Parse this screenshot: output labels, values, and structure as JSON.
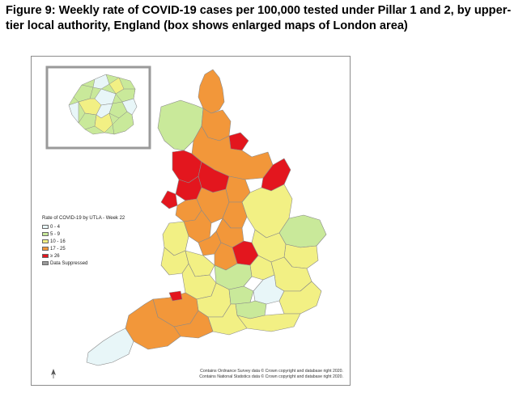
{
  "figure": {
    "title": "Figure 9: Weekly rate of COVID-19 cases per 100,000 tested under Pillar 1 and 2, by upper-tier local authority, England (box shows enlarged maps of London area)"
  },
  "legend": {
    "title": "Rate of COVID-19 by UTLA - Week 22",
    "items": [
      {
        "label": "0 - 4",
        "color": "#e8f6f8"
      },
      {
        "label": "5 - 9",
        "color": "#c9e99a"
      },
      {
        "label": "10 - 16",
        "color": "#f2f084"
      },
      {
        "label": "17 - 25",
        "color": "#f2973a"
      },
      {
        "label": "≥ 26",
        "color": "#e3161e"
      },
      {
        "label": "Data Suppressed",
        "color": "#9b9b9b"
      }
    ]
  },
  "credits": {
    "line1": "Contains Ordnance Survey data © Crown copyright and database right 2020.",
    "line2": "Contains National Statistics data © Crown copyright and database right 2020."
  },
  "colors": {
    "band_0_4": "#e8f6f8",
    "band_5_9": "#c9e99a",
    "band_10_16": "#f2f084",
    "band_17_25": "#f2973a",
    "band_26_plus": "#e3161e",
    "suppressed": "#9b9b9b",
    "boundary": "#8a8a8a"
  },
  "icons": {
    "north_arrow": "north-arrow-icon"
  }
}
